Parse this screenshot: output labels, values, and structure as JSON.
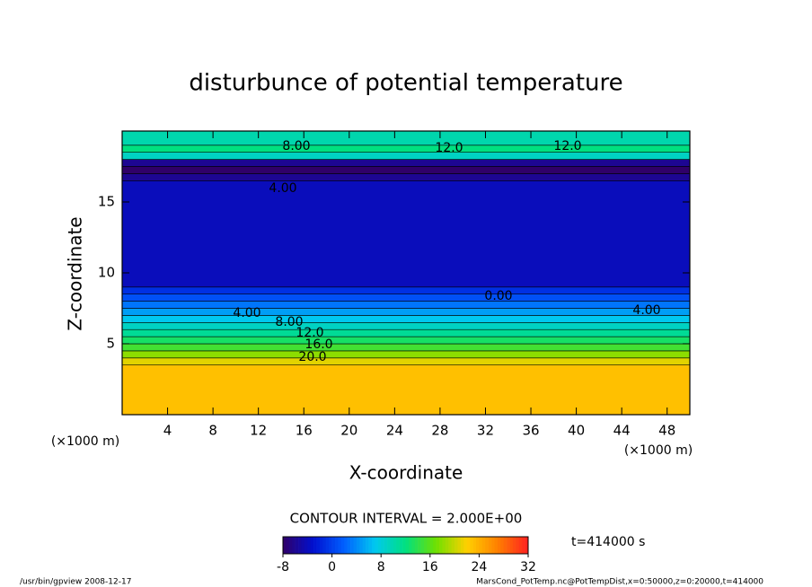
{
  "chart_data": {
    "type": "contour",
    "title": "disturbunce of potential temperature",
    "x_label": "X-coordinate",
    "y_label": "Z-coordinate",
    "x_unit_left": "(×1000 m)",
    "x_unit_right": "(×1000 m)",
    "xlim": [
      0,
      50
    ],
    "ylim": [
      0,
      20
    ],
    "xticks": [
      4,
      8,
      12,
      16,
      20,
      24,
      28,
      32,
      36,
      40,
      44,
      48
    ],
    "yticks": [
      5,
      10,
      15
    ],
    "z_edges": [
      0,
      3.5,
      4,
      4.5,
      5,
      5.5,
      6,
      6.5,
      7,
      7.5,
      8,
      8.5,
      9,
      16.5,
      17,
      17.5,
      18,
      18.5,
      19,
      20
    ],
    "values": [
      23,
      21,
      18,
      15,
      13,
      11,
      9,
      7,
      5,
      3,
      1,
      -1,
      -4,
      -6,
      -8,
      -6,
      9,
      12,
      10
    ],
    "contour_labels": [
      "8.00",
      "12.0",
      "12.0",
      "4.00",
      "0.00",
      "4.00",
      "4.00",
      "8.00",
      "12.0",
      "16.0",
      "20.0"
    ],
    "contour_interval": "CONTOUR INTERVAL = 2.000E+00",
    "time_label": "t=414000 s",
    "colorbar": {
      "lim": [
        -8,
        32
      ],
      "ticks": [
        -8,
        0,
        8,
        16,
        24,
        32
      ]
    },
    "colormap": [
      "#300068",
      "#0010d0",
      "#0060ff",
      "#00c8f0",
      "#00e080",
      "#70e000",
      "#ffd000",
      "#ff8000",
      "#ff2020"
    ],
    "footer_left": "/usr/bin/gpview   2008-12-17",
    "footer_right": "MarsCond_PotTemp.nc@PotTempDist,x=0:50000,z=0:20000,t=414000"
  }
}
